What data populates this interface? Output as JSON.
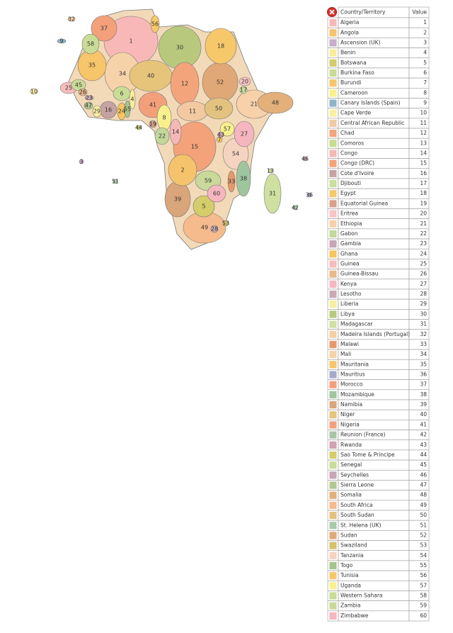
{
  "table": {
    "headers": [
      "Country/Territory",
      "Value"
    ],
    "rows": [
      {
        "name": "Algeria",
        "value": 1,
        "color": "#f9b8b8"
      },
      {
        "name": "Angola",
        "value": 2,
        "color": "#f5c36b"
      },
      {
        "name": "Ascension (UK)",
        "value": 3,
        "color": "#c8aec8"
      },
      {
        "name": "Benin",
        "value": 4,
        "color": "#f8ee9a"
      },
      {
        "name": "Botswana",
        "value": 5,
        "color": "#d5cc6a"
      },
      {
        "name": "Burkina Faso",
        "value": 6,
        "color": "#c9dc96"
      },
      {
        "name": "Burundi",
        "value": 7,
        "color": "#f6c66a"
      },
      {
        "name": "Cameroon",
        "value": 8,
        "color": "#f8f08c"
      },
      {
        "name": "Canary Islands (Spain)",
        "value": 9,
        "color": "#8fb4c9"
      },
      {
        "name": "Cape Verde",
        "value": 10,
        "color": "#faf0a0"
      },
      {
        "name": "Central African Republic",
        "value": 11,
        "color": "#f2c9a0"
      },
      {
        "name": "Chad",
        "value": 12,
        "color": "#f4a47a"
      },
      {
        "name": "Comoros",
        "value": 13,
        "color": "#c8dd8e"
      },
      {
        "name": "Congo",
        "value": 14,
        "color": "#f6b7b7"
      },
      {
        "name": "Congo (DRC)",
        "value": 15,
        "color": "#f4a27a"
      },
      {
        "name": "Cote d'Ivoire",
        "value": 16,
        "color": "#c6a2a2"
      },
      {
        "name": "Djibouti",
        "value": 17,
        "color": "#c8e09a"
      },
      {
        "name": "Egypt",
        "value": 18,
        "color": "#f7c86a"
      },
      {
        "name": "Equatorial Guinea",
        "value": 19,
        "color": "#d9a08a"
      },
      {
        "name": "Eritrea",
        "value": 20,
        "color": "#f6c5c5"
      },
      {
        "name": "Ethiopia",
        "value": 21,
        "color": "#f7d1a9"
      },
      {
        "name": "Gabon",
        "value": 22,
        "color": "#c3d89a"
      },
      {
        "name": "Gambia",
        "value": 23,
        "color": "#c9a6b5"
      },
      {
        "name": "Ghana",
        "value": 24,
        "color": "#f8c45e"
      },
      {
        "name": "Guinea",
        "value": 25,
        "color": "#f7bcbc"
      },
      {
        "name": "Guinea-Bissau",
        "value": 26,
        "color": "#e8b88a"
      },
      {
        "name": "Kenya",
        "value": 27,
        "color": "#f6b6bf"
      },
      {
        "name": "Lesotho",
        "value": 28,
        "color": "#c9a9b6"
      },
      {
        "name": "Liberia",
        "value": 29,
        "color": "#f8ef9c"
      },
      {
        "name": "Libya",
        "value": 30,
        "color": "#b8c97e"
      },
      {
        "name": "Madagascar",
        "value": 31,
        "color": "#cfe0a0"
      },
      {
        "name": "Madeira Islands (Portugal)",
        "value": 32,
        "color": "#f6cfa4"
      },
      {
        "name": "Malawi",
        "value": 33,
        "color": "#e8996b"
      },
      {
        "name": "Mali",
        "value": 34,
        "color": "#f5d2a8"
      },
      {
        "name": "Mauritania",
        "value": 35,
        "color": "#f7c56a"
      },
      {
        "name": "Mauritius",
        "value": 36,
        "color": "#a8a8cc"
      },
      {
        "name": "Morocco",
        "value": 37,
        "color": "#f4a07a"
      },
      {
        "name": "Mozambique",
        "value": 38,
        "color": "#9fc59f"
      },
      {
        "name": "Namibia",
        "value": 39,
        "color": "#d9a57a"
      },
      {
        "name": "Niger",
        "value": 40,
        "color": "#e6c57b"
      },
      {
        "name": "Nigeria",
        "value": 41,
        "color": "#f3a07a"
      },
      {
        "name": "Reunion (France)",
        "value": 42,
        "color": "#a6c4a6"
      },
      {
        "name": "Rwanda",
        "value": 43,
        "color": "#cfa3b0"
      },
      {
        "name": "Sao Tome & Principe",
        "value": 44,
        "color": "#d6cd6a"
      },
      {
        "name": "Senegal",
        "value": 45,
        "color": "#c9dc96"
      },
      {
        "name": "Seychelles",
        "value": 46,
        "color": "#c9a6b5"
      },
      {
        "name": "Sierra Leone",
        "value": 47,
        "color": "#b0c890"
      },
      {
        "name": "Somalia",
        "value": 48,
        "color": "#e3b07a"
      },
      {
        "name": "South Africa",
        "value": 49,
        "color": "#f5bb8d"
      },
      {
        "name": "South Sudan",
        "value": 50,
        "color": "#e3c27f"
      },
      {
        "name": "St. Helena (UK)",
        "value": 51,
        "color": "#a9c9a9"
      },
      {
        "name": "Sudan",
        "value": 52,
        "color": "#e0a876"
      },
      {
        "name": "Swaziland",
        "value": 53,
        "color": "#d6c06a"
      },
      {
        "name": "Tanzania",
        "value": 54,
        "color": "#f6d3c0"
      },
      {
        "name": "Togo",
        "value": 55,
        "color": "#a4c48e"
      },
      {
        "name": "Tunisia",
        "value": 56,
        "color": "#f7c86a"
      },
      {
        "name": "Uganda",
        "value": 57,
        "color": "#f8f08c"
      },
      {
        "name": "Western Sahara",
        "value": 58,
        "color": "#c9dc96"
      },
      {
        "name": "Zambia",
        "value": 59,
        "color": "#c8d99a"
      },
      {
        "name": "Zimbabwe",
        "value": 60,
        "color": "#f6b6bf"
      }
    ]
  }
}
